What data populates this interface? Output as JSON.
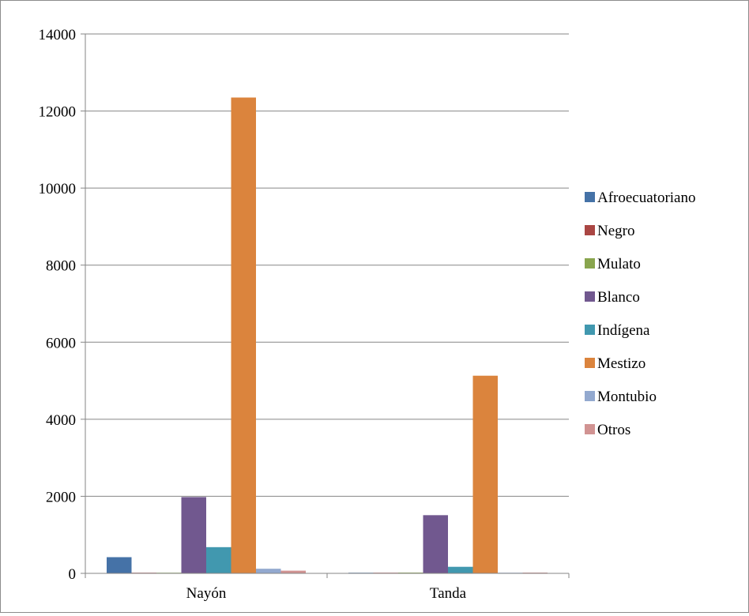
{
  "chart_data": {
    "type": "bar",
    "title": "",
    "xlabel": "",
    "ylabel": "",
    "categories": [
      "Nayón",
      "Tanda"
    ],
    "ylim": [
      0,
      14000
    ],
    "yticks": [
      0,
      2000,
      4000,
      6000,
      8000,
      10000,
      12000,
      14000
    ],
    "grid": true,
    "legend_position": "right",
    "series": [
      {
        "name": "Afroecuatoriano",
        "color": "#4572A7",
        "values": [
          420,
          10
        ]
      },
      {
        "name": "Negro",
        "color": "#AA4643",
        "values": [
          10,
          5
        ]
      },
      {
        "name": "Mulato",
        "color": "#89A54E",
        "values": [
          10,
          20
        ]
      },
      {
        "name": "Blanco",
        "color": "#71588F",
        "values": [
          1980,
          1510
        ]
      },
      {
        "name": "Indígena",
        "color": "#4198AF",
        "values": [
          680,
          170
        ]
      },
      {
        "name": "Mestizo",
        "color": "#DB843D",
        "values": [
          12350,
          5130
        ]
      },
      {
        "name": "Montubio",
        "color": "#93A9CF",
        "values": [
          120,
          10
        ]
      },
      {
        "name": "Otros",
        "color": "#D19392",
        "values": [
          70,
          20
        ]
      }
    ]
  }
}
